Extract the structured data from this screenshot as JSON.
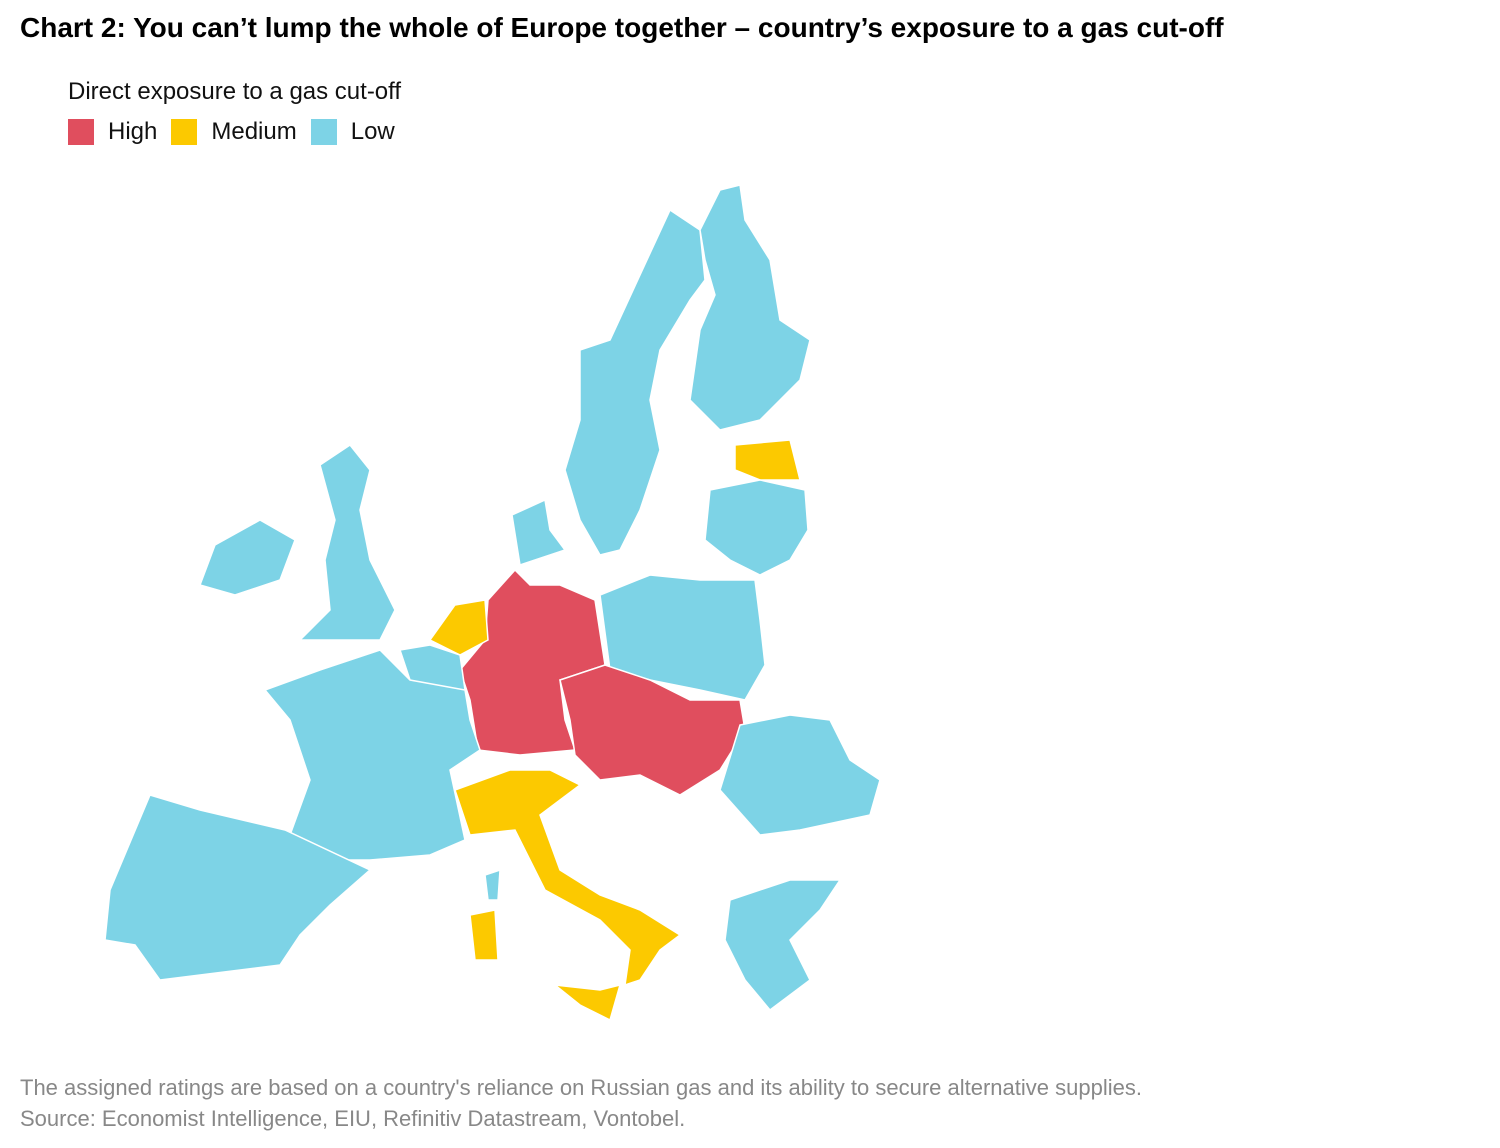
{
  "title": "Chart 2: You can’t lump the whole of Europe together – country’s exposure to a gas cut-off",
  "legend": {
    "title": "Direct exposure to a gas cut-off",
    "items": [
      {
        "label": "High",
        "color": "#e04e5e"
      },
      {
        "label": "Medium",
        "color": "#fcc900"
      },
      {
        "label": "Low",
        "color": "#7dd3e6"
      }
    ]
  },
  "footnote": {
    "lines": [
      "The assigned ratings are based on a country's reliance on Russian gas and its ability to secure alternative supplies.",
      "Source: Economist Intelligence, EIU, Refinitiv Datastream, Vontobel."
    ]
  }
}
